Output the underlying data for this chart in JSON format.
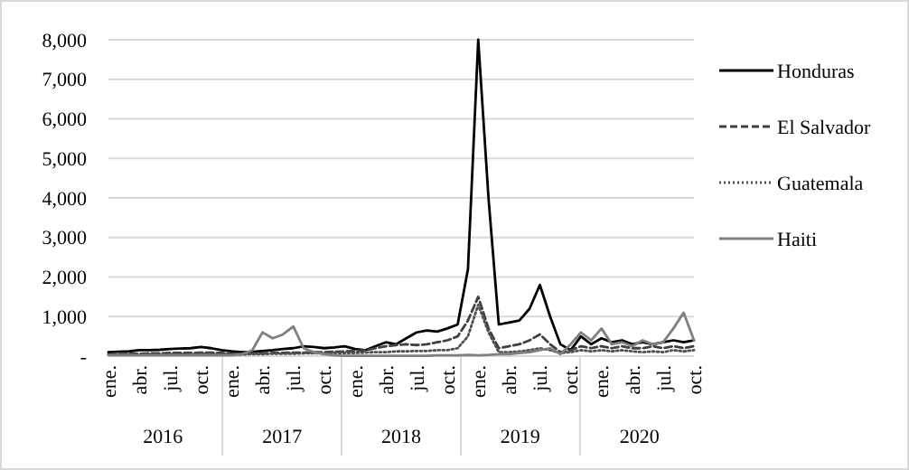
{
  "chart_data": {
    "type": "line",
    "categories": [
      "ene.",
      null,
      null,
      "abr.",
      null,
      null,
      "jul.",
      null,
      null,
      "oct.",
      null,
      null,
      "ene.",
      null,
      null,
      "abr.",
      null,
      null,
      "jul.",
      null,
      null,
      "oct.",
      null,
      null,
      "ene.",
      null,
      null,
      "abr.",
      null,
      null,
      "jul.",
      null,
      null,
      "oct.",
      null,
      null,
      "ene.",
      null,
      null,
      "abr.",
      null,
      null,
      "jul.",
      null,
      null,
      "oct.",
      null,
      null,
      "ene.",
      null,
      null,
      "abr.",
      null,
      null,
      "jul.",
      null,
      null,
      "oct."
    ],
    "series": [
      {
        "name": "Honduras",
        "color": "#000000",
        "line_style": "solid",
        "values": [
          100,
          110,
          120,
          150,
          150,
          160,
          180,
          190,
          200,
          230,
          200,
          150,
          120,
          100,
          110,
          130,
          150,
          180,
          200,
          250,
          230,
          200,
          220,
          250,
          180,
          150,
          250,
          350,
          300,
          450,
          600,
          650,
          620,
          700,
          800,
          2200,
          8000,
          4000,
          800,
          850,
          900,
          1200,
          1800,
          1000,
          300,
          150,
          500,
          300,
          450,
          350,
          400,
          300,
          350,
          300,
          350,
          400,
          350,
          400
        ]
      },
      {
        "name": "El Salvador",
        "color": "#404040",
        "line_style": "dashed",
        "values": [
          50,
          50,
          60,
          60,
          70,
          70,
          80,
          80,
          80,
          90,
          90,
          80,
          60,
          60,
          70,
          70,
          80,
          80,
          90,
          90,
          100,
          100,
          110,
          120,
          130,
          150,
          200,
          250,
          280,
          300,
          280,
          300,
          350,
          400,
          500,
          900,
          1500,
          700,
          200,
          250,
          300,
          400,
          550,
          300,
          100,
          150,
          250,
          200,
          250,
          200,
          250,
          200,
          200,
          250,
          200,
          250,
          200,
          250
        ]
      },
      {
        "name": "Guatemala",
        "color": "#505050",
        "line_style": "dotted",
        "values": [
          30,
          30,
          40,
          40,
          50,
          50,
          50,
          50,
          60,
          60,
          60,
          50,
          40,
          40,
          50,
          50,
          60,
          60,
          60,
          70,
          70,
          70,
          80,
          80,
          80,
          90,
          100,
          100,
          120,
          120,
          130,
          130,
          150,
          150,
          200,
          500,
          1300,
          600,
          100,
          100,
          120,
          150,
          200,
          150,
          80,
          100,
          150,
          120,
          150,
          120,
          150,
          120,
          100,
          120,
          100,
          150,
          120,
          150
        ]
      },
      {
        "name": "Haiti",
        "color": "#808080",
        "line_style": "solid",
        "values": [
          20,
          20,
          20,
          20,
          20,
          20,
          20,
          20,
          20,
          20,
          20,
          20,
          20,
          50,
          150,
          600,
          450,
          550,
          750,
          200,
          100,
          50,
          20,
          10,
          10,
          10,
          10,
          10,
          10,
          10,
          10,
          10,
          20,
          20,
          20,
          30,
          20,
          30,
          50,
          50,
          80,
          100,
          150,
          200,
          50,
          300,
          600,
          400,
          700,
          300,
          350,
          250,
          400,
          300,
          350,
          700,
          1100,
          400
        ]
      }
    ],
    "ylim": [
      0,
      8000
    ],
    "yticks": [
      {
        "value": 0,
        "label": "-"
      },
      {
        "value": 1000,
        "label": "1,000"
      },
      {
        "value": 2000,
        "label": "2,000"
      },
      {
        "value": 3000,
        "label": "3,000"
      },
      {
        "value": 4000,
        "label": "4,000"
      },
      {
        "value": 5000,
        "label": "5,000"
      },
      {
        "value": 6000,
        "label": "6,000"
      },
      {
        "value": 7000,
        "label": "7,000"
      },
      {
        "value": 8000,
        "label": "8,000"
      }
    ],
    "grid": "y",
    "legend": "right",
    "annotations": [
      "2016",
      "2017",
      "2018",
      "2019",
      "2020"
    ]
  }
}
